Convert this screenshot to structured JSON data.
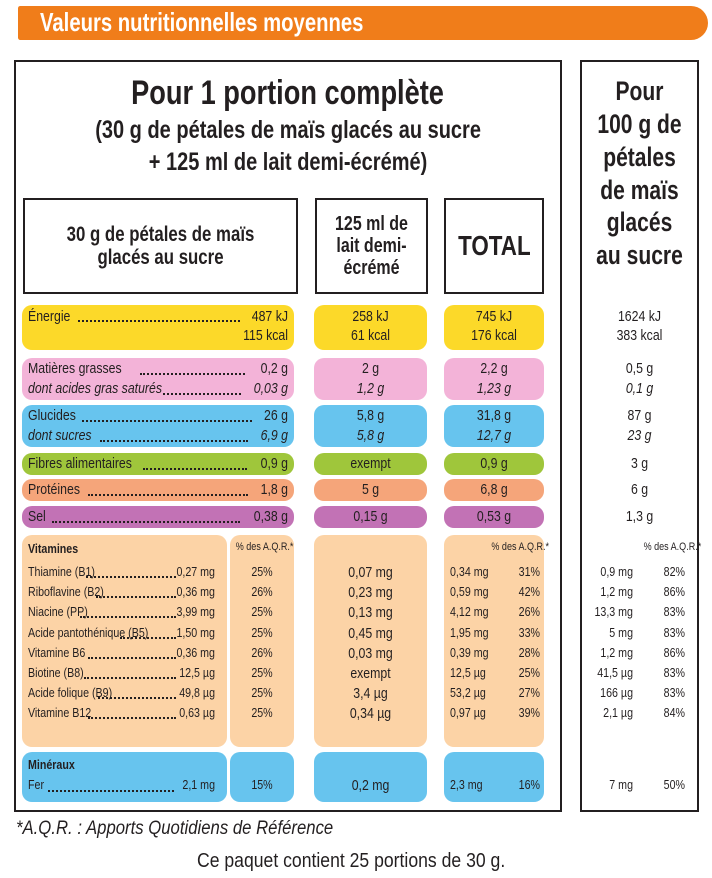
{
  "banner": "Valeurs nutritionnelles moyennes",
  "header": {
    "line1": "Pour 1 portion complète",
    "line2": "(30 g de pétales de maïs glacés au sucre",
    "line3": "+ 125 ml de lait demi-écrémé)"
  },
  "col_heads": {
    "cereal": "30 g de pétales de maïs glacés au sucre",
    "milk": "125 ml de lait demi-écrémé",
    "total": "TOTAL",
    "per100": "Pour 100 g de pétales de maïs glacés au sucre"
  },
  "rows": {
    "energie": {
      "label": "Énergie",
      "c1": "487 kJ",
      "c1b": "115 kcal",
      "m1": "258 kJ",
      "m1b": "61 kcal",
      "t1": "745 kJ",
      "t1b": "176 kcal",
      "p1": "1624 kJ",
      "p1b": "383 kcal"
    },
    "mg": {
      "label": "Matières grasses",
      "c1": "0,2 g",
      "m1": "2 g",
      "t1": "2,2 g",
      "p1": "0,5 g"
    },
    "ags": {
      "label": "dont acides gras saturés",
      "c1": "0,03 g",
      "m1": "1,2 g",
      "t1": "1,23 g",
      "p1": "0,1 g"
    },
    "glucides": {
      "label": "Glucides",
      "c1": "26 g",
      "m1": "5,8 g",
      "t1": "31,8 g",
      "p1": "87 g"
    },
    "sucres": {
      "label": "dont sucres",
      "c1": "6,9 g",
      "m1": "5,8 g",
      "t1": "12,7 g",
      "p1": "23 g"
    },
    "fibres": {
      "label": "Fibres alimentaires",
      "c1": "0,9 g",
      "m1": "exempt",
      "t1": "0,9 g",
      "p1": "3 g"
    },
    "proteines": {
      "label": "Protéines",
      "c1": "1,8 g",
      "m1": "5 g",
      "t1": "6,8 g",
      "p1": "6 g"
    },
    "sel": {
      "label": "Sel",
      "c1": "0,38 g",
      "m1": "0,15 g",
      "t1": "0,53 g",
      "p1": "1,3 g"
    }
  },
  "vitamins": {
    "title": "Vitamines",
    "aqr_head": "% des A.Q.R.*",
    "items": [
      {
        "label": "Thiamine (B1)",
        "c": "0,27 mg",
        "cp": "25%",
        "m": "0,07 mg",
        "t": "0,34 mg",
        "tp": "31%",
        "p": "0,9 mg",
        "pp": "82%"
      },
      {
        "label": "Riboflavine (B2)",
        "c": "0,36 mg",
        "cp": "26%",
        "m": "0,23 mg",
        "t": "0,59 mg",
        "tp": "42%",
        "p": "1,2 mg",
        "pp": "86%"
      },
      {
        "label": "Niacine (PP)",
        "c": "3,99 mg",
        "cp": "25%",
        "m": "0,13 mg",
        "t": "4,12 mg",
        "tp": "26%",
        "p": "13,3 mg",
        "pp": "83%"
      },
      {
        "label": "Acide pantothénique (B5)",
        "c": "1,50 mg",
        "cp": "25%",
        "m": "0,45 mg",
        "t": "1,95 mg",
        "tp": "33%",
        "p": "5 mg",
        "pp": "83%"
      },
      {
        "label": "Vitamine B6",
        "c": "0,36 mg",
        "cp": "26%",
        "m": "0,03 mg",
        "t": "0,39 mg",
        "tp": "28%",
        "p": "1,2 mg",
        "pp": "86%"
      },
      {
        "label": "Biotine (B8)",
        "c": "12,5 µg",
        "cp": "25%",
        "m": "exempt",
        "t": "12,5 µg",
        "tp": "25%",
        "p": "41,5 µg",
        "pp": "83%"
      },
      {
        "label": "Acide folique (B9)",
        "c": "49,8 µg",
        "cp": "25%",
        "m": "3,4 µg",
        "t": "53,2 µg",
        "tp": "27%",
        "p": "166 µg",
        "pp": "83%"
      },
      {
        "label": "Vitamine B12",
        "c": "0,63 µg",
        "cp": "25%",
        "m": "0,34 µg",
        "t": "0,97 µg",
        "tp": "39%",
        "p": "2,1 µg",
        "pp": "84%"
      }
    ]
  },
  "minerals": {
    "title": "Minéraux",
    "item": {
      "label": "Fer",
      "c": "2,1 mg",
      "cp": "15%",
      "m": "0,2 mg",
      "t": "2,3 mg",
      "tp": "16%",
      "p": "7 mg",
      "pp": "50%"
    }
  },
  "footnote": "*A.Q.R. : Apports Quotidiens de Référence",
  "package": "Ce paquet contient 25 portions de 30 g."
}
